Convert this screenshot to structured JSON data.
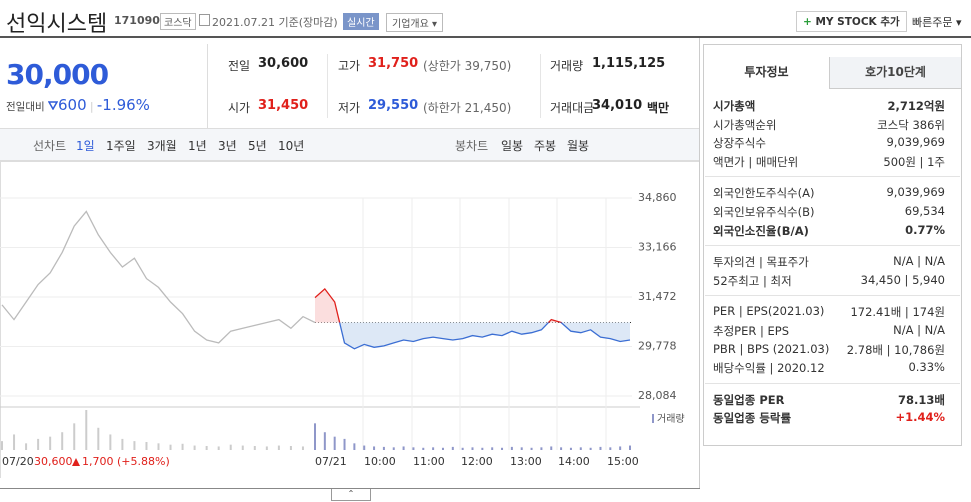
{
  "header": {
    "name": "선익시스템",
    "code": "171090",
    "market": "코스닥",
    "date": "2021.07.21",
    "basis": "기준(장마감)",
    "realtime": "실시간",
    "company": "기업개요",
    "mystock": "MY STOCK 추가",
    "quick": "빠른주문"
  },
  "price": {
    "now": "30,000",
    "change_label": "전일대비",
    "change": "600",
    "rate": "-1.96%"
  },
  "stats": [
    {
      "label": "전일",
      "value": "30,600",
      "color": "#222"
    },
    {
      "label": "고가",
      "value": "31,750",
      "extra": "(상한가 39,750)",
      "color": "#e0201b"
    },
    {
      "label": "거래량",
      "value": "1,115,125",
      "color": "#222"
    },
    {
      "label": "시가",
      "value": "31,450",
      "color": "#e0201b"
    },
    {
      "label": "저가",
      "value": "29,550",
      "extra": "(하한가 21,450)",
      "color": "#2e5bd8"
    },
    {
      "label": "거래대금",
      "value": "34,010",
      "extra": "백만",
      "color": "#222"
    }
  ],
  "tabs": {
    "line_label": "선차트",
    "line_periods": [
      "1일",
      "1주일",
      "3개월",
      "1년",
      "3년",
      "5년",
      "10년"
    ],
    "candle_label": "봉차트",
    "candle_periods": [
      "일봉",
      "주봉",
      "월봉"
    ]
  },
  "chart": {
    "ylim": [
      28084,
      34860
    ],
    "yticks": [
      {
        "value": 34860,
        "label": "34,860"
      },
      {
        "value": 33166,
        "label": "33,166"
      },
      {
        "value": 31472,
        "label": "31,472"
      },
      {
        "value": 29778,
        "label": "29,778"
      },
      {
        "value": 28084,
        "label": "28,084"
      }
    ],
    "prev_close": 30600,
    "prev_prices": [
      31200,
      30700,
      31300,
      31900,
      32300,
      33000,
      33900,
      34400,
      33600,
      33000,
      32500,
      32800,
      32100,
      31800,
      31300,
      30900,
      30300,
      30000,
      29900,
      30300,
      30400,
      30500,
      30600,
      30700,
      30400,
      30800,
      30600
    ],
    "today_prices": [
      31450,
      31750,
      31300,
      29900,
      29700,
      29850,
      29750,
      29800,
      29900,
      30000,
      29950,
      30050,
      30100,
      30050,
      30000,
      30050,
      30150,
      30100,
      30200,
      30150,
      30300,
      30200,
      30250,
      30350,
      30700,
      30600,
      30300,
      30250,
      30350,
      30100,
      30050,
      29950,
      30000
    ],
    "prev_volumes": [
      20,
      35,
      15,
      25,
      30,
      40,
      60,
      90,
      50,
      35,
      25,
      20,
      18,
      15,
      12,
      14,
      10,
      9,
      8,
      12,
      10,
      9,
      8,
      10,
      9,
      8,
      10
    ],
    "today_volumes": [
      60,
      40,
      30,
      25,
      15,
      10,
      8,
      7,
      6,
      8,
      6,
      5,
      6,
      5,
      7,
      5,
      6,
      5,
      6,
      5,
      7,
      6,
      5,
      6,
      8,
      6,
      5,
      6,
      5,
      7,
      6,
      8,
      10
    ],
    "volume_label": "거래량",
    "x_labels": [
      "07/21",
      "10:00",
      "11:00",
      "12:00",
      "13:00",
      "14:00",
      "15:00"
    ],
    "prev_summary": {
      "date": "07/20",
      "close": "30,600",
      "change": "1,700",
      "rate": "(+5.88%)"
    }
  },
  "invest": {
    "tabs": [
      "투자정보",
      "호가10단계"
    ],
    "groups": [
      [
        [
          "시가총액",
          "2,712억원"
        ],
        [
          "시가총액순위",
          "코스닥 386위"
        ],
        [
          "상장주식수",
          "9,039,969"
        ],
        [
          "액면가 | 매매단위",
          "500원 | 1주"
        ]
      ],
      [
        [
          "외국인한도주식수(A)",
          "9,039,969"
        ],
        [
          "외국인보유주식수(B)",
          "69,534"
        ],
        [
          "외국인소진율(B/A)",
          "0.77%"
        ]
      ],
      [
        [
          "투자의견 | 목표주가",
          "N/A | N/A"
        ],
        [
          "52주최고 | 최저",
          "34,450 | 5,940"
        ]
      ],
      [
        [
          "PER | EPS(2021.03)",
          "172.41배 | 174원"
        ],
        [
          "추정PER | EPS",
          "N/A | N/A"
        ],
        [
          "PBR | BPS (2021.03)",
          "2.78배 | 10,786원"
        ],
        [
          "배당수익률 | 2020.12",
          "0.33%"
        ]
      ],
      [
        [
          "동일업종 PER",
          "78.13배"
        ],
        [
          "동일업종 등락률",
          "+1.44%"
        ]
      ]
    ]
  }
}
